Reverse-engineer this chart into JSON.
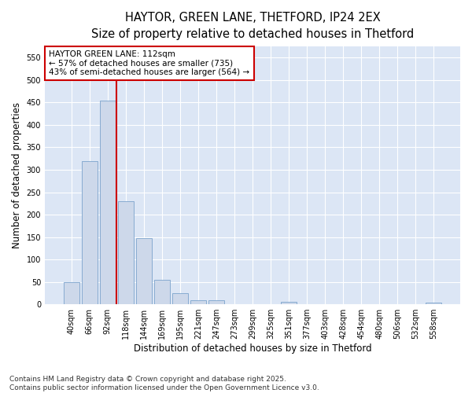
{
  "title_line1": "HAYTOR, GREEN LANE, THETFORD, IP24 2EX",
  "title_line2": "Size of property relative to detached houses in Thetford",
  "xlabel": "Distribution of detached houses by size in Thetford",
  "ylabel": "Number of detached properties",
  "categories": [
    "40sqm",
    "66sqm",
    "92sqm",
    "118sqm",
    "144sqm",
    "169sqm",
    "195sqm",
    "221sqm",
    "247sqm",
    "273sqm",
    "299sqm",
    "325sqm",
    "351sqm",
    "377sqm",
    "403sqm",
    "428sqm",
    "454sqm",
    "480sqm",
    "506sqm",
    "532sqm",
    "558sqm"
  ],
  "values": [
    50,
    320,
    455,
    230,
    148,
    55,
    25,
    10,
    9,
    1,
    0,
    0,
    6,
    0,
    1,
    0,
    0,
    0,
    0,
    0,
    4
  ],
  "bar_color": "#cdd8ea",
  "bar_edge_color": "#7ba3cc",
  "bar_width": 0.85,
  "vline_x": 2.5,
  "vline_color": "#cc0000",
  "annotation_text": "HAYTOR GREEN LANE: 112sqm\n← 57% of detached houses are smaller (735)\n43% of semi-detached houses are larger (564) →",
  "annotation_box_facecolor": "white",
  "annotation_box_edgecolor": "#cc0000",
  "ylim": [
    0,
    575
  ],
  "yticks": [
    0,
    50,
    100,
    150,
    200,
    250,
    300,
    350,
    400,
    450,
    500,
    550
  ],
  "fig_bg_color": "#ffffff",
  "ax_bg_color": "#dce6f5",
  "grid_color": "#ffffff",
  "title_fontsize": 10.5,
  "subtitle_fontsize": 9.5,
  "tick_fontsize": 7,
  "ylabel_fontsize": 8.5,
  "xlabel_fontsize": 8.5,
  "annotation_fontsize": 7.5,
  "footnote_fontsize": 6.5,
  "footnote": "Contains HM Land Registry data © Crown copyright and database right 2025.\nContains public sector information licensed under the Open Government Licence v3.0."
}
